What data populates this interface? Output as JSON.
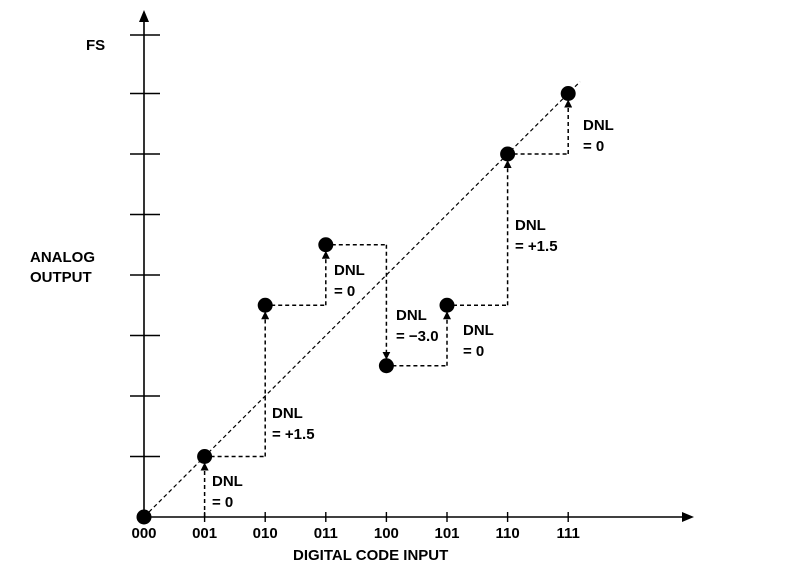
{
  "labels": {
    "y_top": "FS",
    "y_title_line1": "ANALOG",
    "y_title_line2": "OUTPUT",
    "x_title": "DIGITAL CODE INPUT"
  },
  "x_codes": [
    "000",
    "001",
    "010",
    "011",
    "100",
    "101",
    "110",
    "111"
  ],
  "points": [
    {
      "code": "000",
      "level": 0
    },
    {
      "code": "001",
      "level": 1
    },
    {
      "code": "010",
      "level": 3.5
    },
    {
      "code": "011",
      "level": 4.5
    },
    {
      "code": "100",
      "level": 2.5
    },
    {
      "code": "101",
      "level": 3.5
    },
    {
      "code": "110",
      "level": 6
    },
    {
      "code": "111",
      "level": 7
    }
  ],
  "annotations": [
    {
      "line1": "DNL",
      "line2": "= 0"
    },
    {
      "line1": "DNL",
      "line2": "= +1.5"
    },
    {
      "line1": "DNL",
      "line2": "= 0"
    },
    {
      "line1": "DNL",
      "line2": "= −3.0"
    },
    {
      "line1": "DNL",
      "line2": "= 0"
    },
    {
      "line1": "DNL",
      "line2": "= +1.5"
    },
    {
      "line1": "DNL",
      "line2": "= 0"
    }
  ]
}
